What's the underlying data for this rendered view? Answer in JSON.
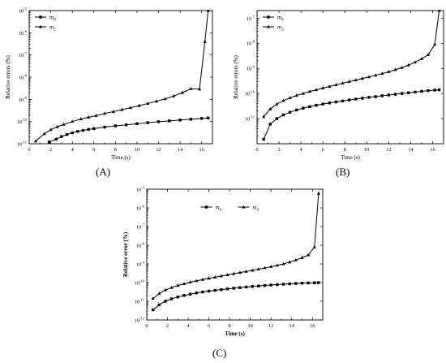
{
  "chart_data": [
    {
      "type": "line",
      "panel_label": "(A)",
      "xlabel": "Time (s)",
      "ylabel": "Relative errors (%)",
      "xlim": [
        0,
        17
      ],
      "ylim_exponents": [
        -11,
        -5
      ],
      "y_scale": "log",
      "xticks": [
        0,
        2,
        4,
        6,
        8,
        10,
        12,
        14,
        16
      ],
      "yticks": [
        -11,
        -10,
        -9,
        -8,
        -7,
        -6,
        -5
      ],
      "legend_position": "top-left",
      "bold_titles": false,
      "series": [
        {
          "name": "m",
          "sub": "0",
          "marker": "square",
          "x": [
            1.85,
            2.5,
            3.0,
            3.5,
            4.0,
            4.5,
            5.0,
            5.5,
            6.0,
            7.0,
            8.0,
            9.0,
            10.0,
            11.0,
            12.0,
            13.0,
            14.0,
            15.0,
            16.0,
            16.6
          ],
          "y": [
            1.2e-11,
            1.6e-11,
            2.1e-11,
            2.6e-11,
            3.1e-11,
            3.6e-11,
            4e-11,
            4.4e-11,
            4.8e-11,
            5.6e-11,
            6.4e-11,
            7.1e-11,
            8e-11,
            8.9e-11,
            9.8e-11,
            1.07e-10,
            1.17e-10,
            1.27e-10,
            1.38e-10,
            1.45e-10
          ]
        },
        {
          "name": "m",
          "sub": "2",
          "marker": "triangle",
          "x": [
            0.6,
            1.4,
            2.0,
            2.6,
            3.2,
            4.0,
            4.8,
            5.5,
            6.2,
            7.0,
            7.8,
            8.6,
            9.4,
            10.2,
            11.0,
            11.8,
            12.6,
            13.4,
            14.2,
            15.0,
            15.8,
            16.3,
            16.6
          ],
          "y": [
            1.3e-11,
            2.8e-11,
            4.3e-11,
            5.8e-11,
            7.4e-11,
            1e-10,
            1.3e-10,
            1.55e-10,
            1.85e-10,
            2.3e-10,
            2.8e-10,
            3.4e-10,
            4.2e-10,
            5.2e-10,
            6.5e-10,
            8.2e-10,
            1.05e-09,
            1.4e-09,
            2e-09,
            3e-09,
            2.9e-09,
            4e-07,
            1e-05
          ]
        }
      ]
    },
    {
      "type": "line",
      "panel_label": "(B)",
      "xlabel": "Time (s)",
      "ylabel": "Relative errors (%)",
      "xlim": [
        0,
        17
      ],
      "ylim_exponents": [
        -12,
        -6.7
      ],
      "y_scale": "log",
      "xticks": [
        0,
        2,
        4,
        6,
        8,
        10,
        12,
        14,
        16
      ],
      "yticks": [
        -11,
        -10,
        -9,
        -8,
        -7
      ],
      "legend_position": "top-left",
      "bold_titles": false,
      "series": [
        {
          "name": "m",
          "sub": "0",
          "marker": "square",
          "x": [
            0.6,
            1.2,
            1.8,
            2.4,
            3.0,
            3.6,
            4.2,
            4.8,
            5.4,
            6.0,
            6.6,
            7.2,
            7.8,
            8.4,
            9.0,
            9.6,
            10.2,
            10.8,
            11.4,
            12.0,
            12.6,
            13.2,
            13.8,
            14.4,
            15.0,
            15.6,
            16.2,
            16.6
          ],
          "y": [
            1.5e-12,
            6e-12,
            1e-11,
            1.4e-11,
            1.8e-11,
            2.2e-11,
            2.6e-11,
            3e-11,
            3.4e-11,
            3.8e-11,
            4.2e-11,
            4.6e-11,
            5e-11,
            5.5e-11,
            6e-11,
            6.5e-11,
            7e-11,
            7.5e-11,
            8.1e-11,
            8.7e-11,
            9.3e-11,
            1e-10,
            1.07e-10,
            1.14e-10,
            1.22e-10,
            1.3e-10,
            1.36e-10,
            1.4e-10
          ]
        },
        {
          "name": "m",
          "sub": "2",
          "marker": "triangle",
          "x": [
            0.6,
            1.2,
            1.8,
            2.4,
            3.0,
            3.6,
            4.2,
            4.8,
            5.4,
            6.0,
            6.6,
            7.2,
            7.8,
            8.4,
            9.0,
            9.6,
            10.2,
            10.8,
            11.4,
            12.0,
            12.6,
            13.2,
            13.8,
            14.4,
            15.0,
            15.6,
            16.2,
            16.6
          ],
          "y": [
            1.2e-11,
            2.4e-11,
            3.8e-11,
            5.2e-11,
            6.7e-11,
            8.3e-11,
            1e-10,
            1.2e-10,
            1.4e-10,
            1.65e-10,
            1.9e-10,
            2.2e-10,
            2.55e-10,
            2.95e-10,
            3.4e-10,
            3.95e-10,
            4.55e-10,
            5.3e-10,
            6.2e-10,
            7.3e-10,
            8.8e-10,
            1.07e-09,
            1.35e-09,
            1.75e-09,
            2.4e-09,
            3.5e-09,
            9e-09,
            2.5e-07
          ]
        }
      ]
    },
    {
      "type": "line",
      "panel_label": "(C)",
      "xlabel": "Time (s)",
      "ylabel": "Relative error (%)",
      "xlim": [
        0,
        17
      ],
      "ylim_exponents": [
        -12,
        -5
      ],
      "y_scale": "log",
      "xticks": [
        0,
        2,
        4,
        6,
        8,
        10,
        12,
        14,
        16
      ],
      "yticks": [
        -12,
        -11,
        -10,
        -9,
        -8,
        -7,
        -6,
        -5
      ],
      "legend_position": "top-center",
      "bold_titles": true,
      "series": [
        {
          "name": "m",
          "sub": "0",
          "marker": "square",
          "x": [
            0.6,
            1.2,
            1.8,
            2.4,
            3.0,
            3.6,
            4.2,
            4.8,
            5.4,
            6.0,
            6.6,
            7.2,
            7.8,
            8.4,
            9.0,
            9.6,
            10.2,
            10.8,
            11.4,
            12.0,
            12.6,
            13.2,
            13.8,
            14.4,
            15.0,
            15.6,
            16.2,
            16.6
          ],
          "y": [
            3.5e-12,
            6.5e-12,
            1e-11,
            1.35e-11,
            1.7e-11,
            2.05e-11,
            2.4e-11,
            2.8e-11,
            3.15e-11,
            3.5e-11,
            3.85e-11,
            4.2e-11,
            4.6e-11,
            5e-11,
            5.4e-11,
            5.8e-11,
            6.2e-11,
            6.6e-11,
            7e-11,
            7.4e-11,
            7.8e-11,
            8.2e-11,
            8.6e-11,
            9e-11,
            9.3e-11,
            9.6e-11,
            9.8e-11,
            1e-10
          ]
        },
        {
          "name": "m",
          "sub": "2",
          "marker": "triangle",
          "x": [
            0.6,
            1.2,
            1.8,
            2.4,
            3.0,
            3.6,
            4.2,
            4.8,
            5.4,
            6.0,
            6.6,
            7.2,
            7.8,
            8.4,
            9.0,
            9.6,
            10.2,
            10.8,
            11.4,
            12.0,
            12.6,
            13.2,
            13.8,
            14.4,
            15.0,
            15.6,
            16.2,
            16.6
          ],
          "y": [
            1.4e-11,
            2.6e-11,
            4e-11,
            5.4e-11,
            7e-11,
            8.6e-11,
            1.05e-10,
            1.25e-10,
            1.45e-10,
            1.7e-10,
            1.95e-10,
            2.25e-10,
            2.6e-10,
            3e-10,
            3.45e-10,
            3.95e-10,
            4.55e-10,
            5.25e-10,
            6.1e-10,
            7.1e-10,
            8.4e-10,
            1e-09,
            1.25e-09,
            1.6e-09,
            2.15e-09,
            3e-09,
            8e-09,
            6e-06
          ]
        }
      ]
    }
  ]
}
